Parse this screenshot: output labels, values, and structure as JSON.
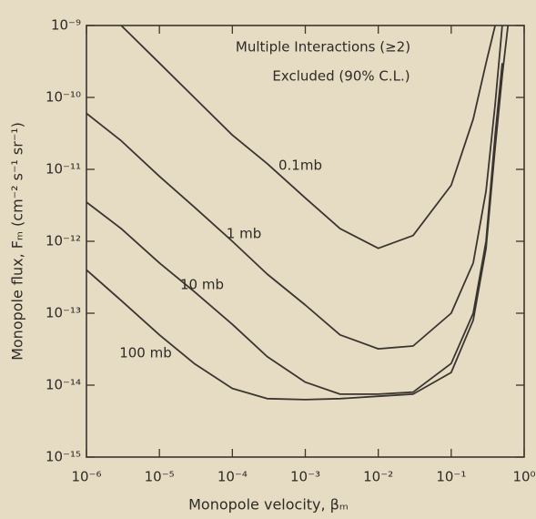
{
  "chart_data": {
    "type": "line",
    "annotations": [
      "Multiple Interactions (≥2)",
      "Excluded (90% C.L.)"
    ],
    "x_label": "Monopole velocity, βₘ",
    "y_label": "Monopole flux, Fₘ (cm⁻² s⁻¹ sr⁻¹)",
    "xscale": "log",
    "yscale": "log",
    "x": [
      1e-06,
      3e-06,
      1e-05,
      3e-05,
      0.0001,
      0.0003,
      0.001,
      0.003,
      0.01,
      0.03,
      0.1,
      0.2,
      0.3,
      0.4,
      0.5,
      0.6
    ],
    "series": [
      {
        "name": "0.1mb",
        "color": "#3a3530",
        "values": [
          null,
          1e-09,
          3e-10,
          1e-10,
          3e-11,
          1.2e-11,
          4e-12,
          1.5e-12,
          8e-13,
          1.2e-12,
          6e-12,
          5e-11,
          3e-10,
          1e-09,
          null,
          null
        ]
      },
      {
        "name": "1 mb",
        "color": "#3a3530",
        "values": [
          6e-11,
          2.5e-11,
          8e-12,
          3e-12,
          1e-12,
          3.5e-13,
          1.3e-13,
          5e-14,
          3.2e-14,
          3.5e-14,
          1e-13,
          5e-13,
          5e-12,
          8e-11,
          1e-09,
          null
        ]
      },
      {
        "name": "10 mb",
        "color": "#3a3530",
        "values": [
          3.5e-12,
          1.5e-12,
          5e-13,
          2e-13,
          7e-14,
          2.5e-14,
          1.1e-14,
          7.5e-15,
          7.5e-15,
          8e-15,
          2e-14,
          1e-13,
          1e-12,
          3e-11,
          3e-10,
          null
        ]
      },
      {
        "name": "100 mb",
        "color": "#3a3530",
        "values": [
          4e-13,
          1.5e-13,
          5e-14,
          2e-14,
          9e-15,
          6.5e-15,
          6.3e-15,
          6.5e-15,
          7e-15,
          7.5e-15,
          1.5e-14,
          8e-14,
          8e-13,
          2e-11,
          2e-10,
          1e-09
        ]
      }
    ],
    "xlim": [
      1e-06,
      1
    ],
    "ylim": [
      1e-15,
      1e-09
    ],
    "xticks": [
      {
        "value": 1e-06,
        "label": "10⁻⁶"
      },
      {
        "value": 1e-05,
        "label": "10⁻⁵"
      },
      {
        "value": 0.0001,
        "label": "10⁻⁴"
      },
      {
        "value": 0.001,
        "label": "10⁻³"
      },
      {
        "value": 0.01,
        "label": "10⁻²"
      },
      {
        "value": 0.1,
        "label": "10⁻¹"
      },
      {
        "value": 1,
        "label": "10⁰"
      }
    ],
    "yticks": [
      {
        "value": 1e-15,
        "label": "10⁻¹⁵"
      },
      {
        "value": 1e-14,
        "label": "10⁻¹⁴"
      },
      {
        "value": 1e-13,
        "label": "10⁻¹³"
      },
      {
        "value": 1e-12,
        "label": "10⁻¹²"
      },
      {
        "value": 1e-11,
        "label": "10⁻¹¹"
      },
      {
        "value": 1e-10,
        "label": "10⁻¹⁰"
      },
      {
        "value": 1e-09,
        "label": "10⁻⁹"
      }
    ],
    "grid": false
  }
}
